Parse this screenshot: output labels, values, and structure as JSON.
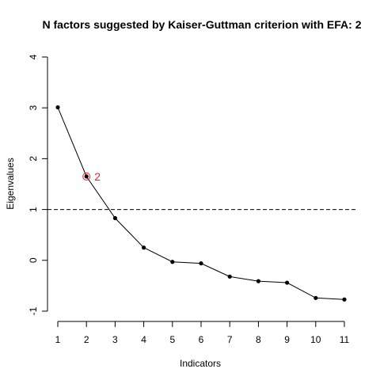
{
  "chart_data": {
    "type": "line",
    "title": "N factors suggested by Kaiser-Guttman criterion with EFA: 2",
    "xlabel": "Indicators",
    "ylabel": "Eigenvalues",
    "x": [
      1,
      2,
      3,
      4,
      5,
      6,
      7,
      8,
      9,
      10,
      11
    ],
    "series": [
      {
        "values": [
          3.01,
          1.65,
          0.83,
          0.25,
          -0.03,
          -0.06,
          -0.32,
          -0.41,
          -0.44,
          -0.74,
          -0.77
        ]
      }
    ],
    "xlim": [
      1,
      11
    ],
    "ylim": [
      -1,
      4
    ],
    "xticks": [
      1,
      2,
      3,
      4,
      5,
      6,
      7,
      8,
      9,
      10,
      11
    ],
    "yticks": [
      -1,
      0,
      1,
      2,
      3,
      4
    ],
    "reference_line": {
      "y": 1,
      "style": "dashed"
    },
    "highlight": {
      "x": 2,
      "y": 1.65,
      "label": "2",
      "color": "#e8202a"
    },
    "grid": false,
    "legend": "none"
  }
}
